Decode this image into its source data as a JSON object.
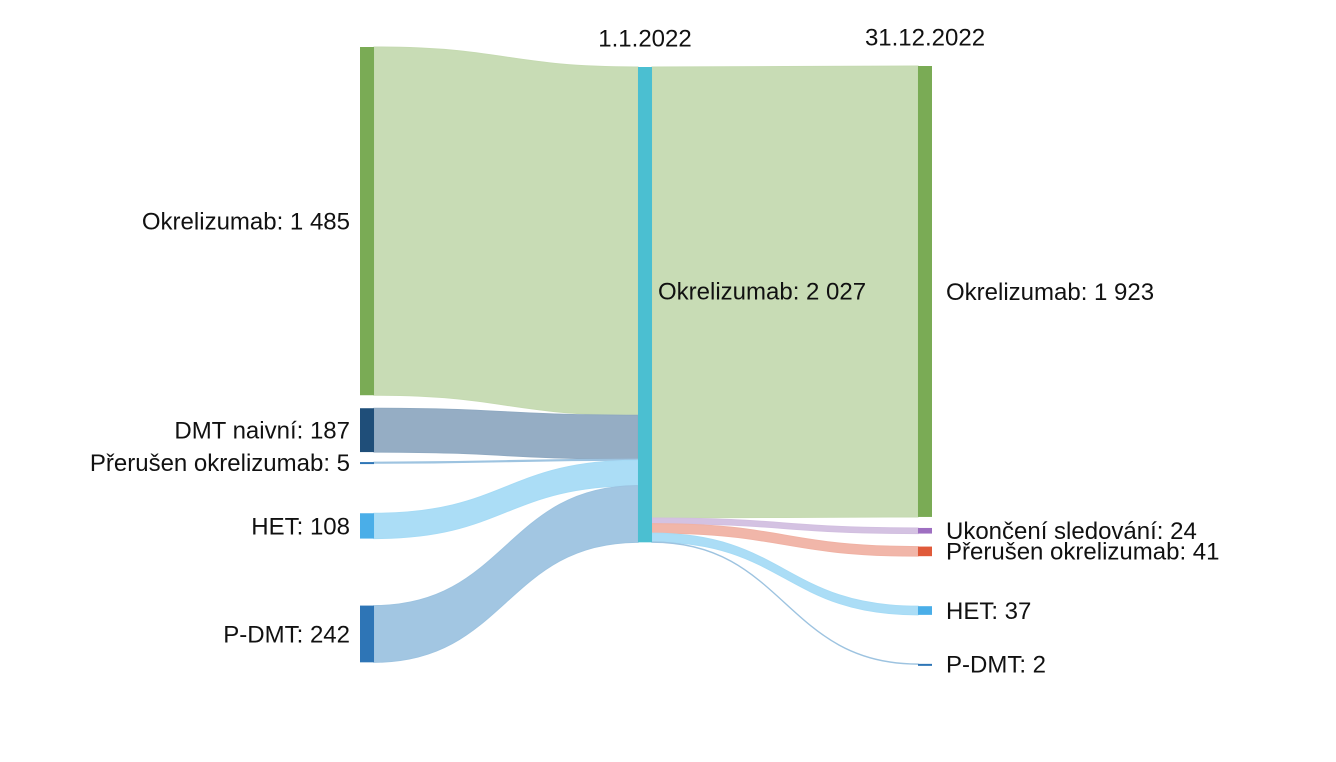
{
  "chart_data": {
    "type": "sankey",
    "column_titles": [
      null,
      "1.1.2022",
      "31.12.2022"
    ],
    "nodes": [
      {
        "label": "Okrelizumab: 1 485",
        "value": 1485,
        "column": 0,
        "color": "#7aab55"
      },
      {
        "label": "DMT naivní: 187",
        "value": 187,
        "column": 0,
        "color": "#1f4e79"
      },
      {
        "label": "Přerušen okrelizumab: 5",
        "value": 5,
        "column": 0,
        "color": "#2e75b6"
      },
      {
        "label": "HET: 108",
        "value": 108,
        "column": 0,
        "color": "#4aaee8"
      },
      {
        "label": "P-DMT: 242",
        "value": 242,
        "column": 0,
        "color": "#2e75b6"
      },
      {
        "label": "Okrelizumab: 2 027",
        "value": 2027,
        "column": 1,
        "color": "#4bbfd1"
      },
      {
        "label": "Okrelizumab: 1 923",
        "value": 1923,
        "column": 2,
        "color": "#7aab55"
      },
      {
        "label": "Ukončení sledování: 24",
        "value": 24,
        "column": 2,
        "color": "#9e6fc1"
      },
      {
        "label": "Přerušen okrelizumab: 41",
        "value": 41,
        "column": 2,
        "color": "#e05a3a"
      },
      {
        "label": "HET: 37",
        "value": 37,
        "column": 2,
        "color": "#4aaee8"
      },
      {
        "label": "P-DMT: 2",
        "value": 2,
        "column": 2,
        "color": "#2e75b6"
      }
    ],
    "links": [
      {
        "source": 0,
        "target": 5,
        "color": "#c5dab1"
      },
      {
        "source": 1,
        "target": 5,
        "color": "#8fa9c1"
      },
      {
        "source": 2,
        "target": 5,
        "color": "#9dc3e0"
      },
      {
        "source": 3,
        "target": 5,
        "color": "#a6dbf5"
      },
      {
        "source": 4,
        "target": 5,
        "color": "#9dc3e0"
      },
      {
        "source": 5,
        "target": 6,
        "color": "#c5dab1"
      },
      {
        "source": 5,
        "target": 7,
        "color": "#d2bfe0"
      },
      {
        "source": 5,
        "target": 8,
        "color": "#f0b2a4"
      },
      {
        "source": 5,
        "target": 9,
        "color": "#a6dbf5"
      },
      {
        "source": 5,
        "target": 10,
        "color": "#9dc3e0"
      }
    ]
  }
}
